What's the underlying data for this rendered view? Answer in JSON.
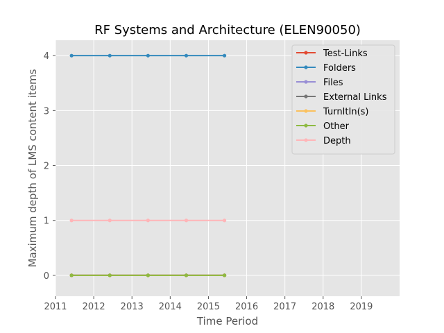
{
  "chart_data": {
    "type": "line",
    "title": "RF Systems and Architecture (ELEN90050)",
    "xlabel": "Time Period",
    "ylabel": "Maximum depth of LMS content items",
    "xlim": [
      2011,
      2020
    ],
    "ylim": [
      -0.38,
      4.28
    ],
    "xticks": [
      2011,
      2012,
      2013,
      2014,
      2015,
      2016,
      2017,
      2018,
      2019
    ],
    "yticks": [
      0,
      1,
      2,
      3,
      4
    ],
    "grid": true,
    "legend_position": "top-right",
    "x": [
      2011.42,
      2012.42,
      2013.42,
      2014.42,
      2015.42
    ],
    "series": [
      {
        "name": "Test-Links",
        "color": "#E24A33",
        "values": [
          0,
          0,
          0,
          0,
          0
        ]
      },
      {
        "name": "Folders",
        "color": "#348ABD",
        "values": [
          4,
          4,
          4,
          4,
          4
        ]
      },
      {
        "name": "Files",
        "color": "#988ED5",
        "values": [
          0,
          0,
          0,
          0,
          0
        ]
      },
      {
        "name": "External Links",
        "color": "#777777",
        "values": [
          0,
          0,
          0,
          0,
          0
        ]
      },
      {
        "name": "TurnItIn(s)",
        "color": "#FBC15E",
        "values": [
          0,
          0,
          0,
          0,
          0
        ]
      },
      {
        "name": "Other",
        "color": "#8EBA42",
        "values": [
          0,
          0,
          0,
          0,
          0
        ]
      },
      {
        "name": "Depth",
        "color": "#FFB5B8",
        "values": [
          1,
          1,
          1,
          1,
          1
        ]
      }
    ]
  }
}
